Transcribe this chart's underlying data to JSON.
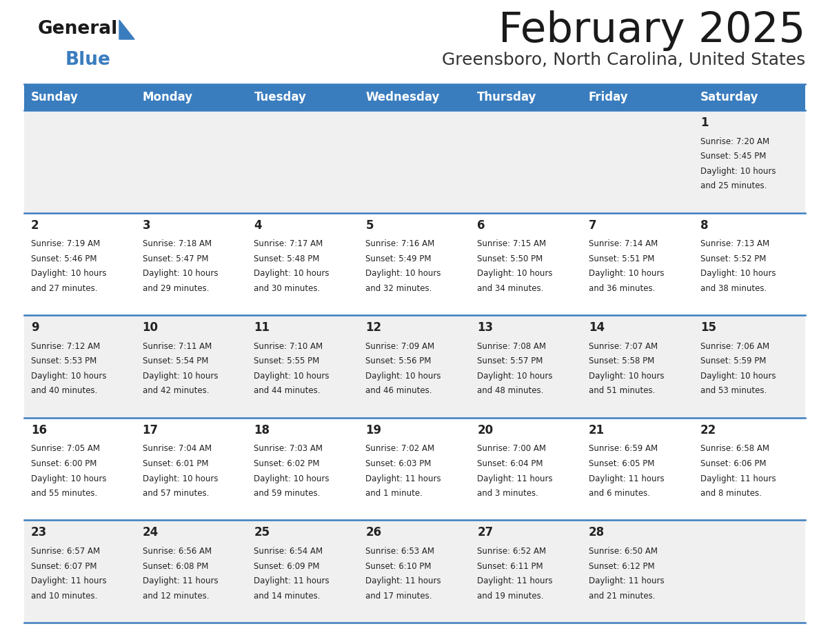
{
  "title": "February 2025",
  "subtitle": "Greensboro, North Carolina, United States",
  "header_bg": "#3a7dbf",
  "header_text": "#ffffff",
  "row_bg_odd": "#f0f0f0",
  "row_bg_even": "#ffffff",
  "cell_border": "#3a7dbf",
  "day_headers": [
    "Sunday",
    "Monday",
    "Tuesday",
    "Wednesday",
    "Thursday",
    "Friday",
    "Saturday"
  ],
  "logo_general_color": "#1a1a1a",
  "logo_blue_color": "#3a7dbf",
  "days": [
    {
      "day": 1,
      "col": 6,
      "row": 0,
      "sunrise": "7:20 AM",
      "sunset": "5:45 PM",
      "daylight": "10 hours and 25 minutes."
    },
    {
      "day": 2,
      "col": 0,
      "row": 1,
      "sunrise": "7:19 AM",
      "sunset": "5:46 PM",
      "daylight": "10 hours and 27 minutes."
    },
    {
      "day": 3,
      "col": 1,
      "row": 1,
      "sunrise": "7:18 AM",
      "sunset": "5:47 PM",
      "daylight": "10 hours and 29 minutes."
    },
    {
      "day": 4,
      "col": 2,
      "row": 1,
      "sunrise": "7:17 AM",
      "sunset": "5:48 PM",
      "daylight": "10 hours and 30 minutes."
    },
    {
      "day": 5,
      "col": 3,
      "row": 1,
      "sunrise": "7:16 AM",
      "sunset": "5:49 PM",
      "daylight": "10 hours and 32 minutes."
    },
    {
      "day": 6,
      "col": 4,
      "row": 1,
      "sunrise": "7:15 AM",
      "sunset": "5:50 PM",
      "daylight": "10 hours and 34 minutes."
    },
    {
      "day": 7,
      "col": 5,
      "row": 1,
      "sunrise": "7:14 AM",
      "sunset": "5:51 PM",
      "daylight": "10 hours and 36 minutes."
    },
    {
      "day": 8,
      "col": 6,
      "row": 1,
      "sunrise": "7:13 AM",
      "sunset": "5:52 PM",
      "daylight": "10 hours and 38 minutes."
    },
    {
      "day": 9,
      "col": 0,
      "row": 2,
      "sunrise": "7:12 AM",
      "sunset": "5:53 PM",
      "daylight": "10 hours and 40 minutes."
    },
    {
      "day": 10,
      "col": 1,
      "row": 2,
      "sunrise": "7:11 AM",
      "sunset": "5:54 PM",
      "daylight": "10 hours and 42 minutes."
    },
    {
      "day": 11,
      "col": 2,
      "row": 2,
      "sunrise": "7:10 AM",
      "sunset": "5:55 PM",
      "daylight": "10 hours and 44 minutes."
    },
    {
      "day": 12,
      "col": 3,
      "row": 2,
      "sunrise": "7:09 AM",
      "sunset": "5:56 PM",
      "daylight": "10 hours and 46 minutes."
    },
    {
      "day": 13,
      "col": 4,
      "row": 2,
      "sunrise": "7:08 AM",
      "sunset": "5:57 PM",
      "daylight": "10 hours and 48 minutes."
    },
    {
      "day": 14,
      "col": 5,
      "row": 2,
      "sunrise": "7:07 AM",
      "sunset": "5:58 PM",
      "daylight": "10 hours and 51 minutes."
    },
    {
      "day": 15,
      "col": 6,
      "row": 2,
      "sunrise": "7:06 AM",
      "sunset": "5:59 PM",
      "daylight": "10 hours and 53 minutes."
    },
    {
      "day": 16,
      "col": 0,
      "row": 3,
      "sunrise": "7:05 AM",
      "sunset": "6:00 PM",
      "daylight": "10 hours and 55 minutes."
    },
    {
      "day": 17,
      "col": 1,
      "row": 3,
      "sunrise": "7:04 AM",
      "sunset": "6:01 PM",
      "daylight": "10 hours and 57 minutes."
    },
    {
      "day": 18,
      "col": 2,
      "row": 3,
      "sunrise": "7:03 AM",
      "sunset": "6:02 PM",
      "daylight": "10 hours and 59 minutes."
    },
    {
      "day": 19,
      "col": 3,
      "row": 3,
      "sunrise": "7:02 AM",
      "sunset": "6:03 PM",
      "daylight": "11 hours and 1 minute."
    },
    {
      "day": 20,
      "col": 4,
      "row": 3,
      "sunrise": "7:00 AM",
      "sunset": "6:04 PM",
      "daylight": "11 hours and 3 minutes."
    },
    {
      "day": 21,
      "col": 5,
      "row": 3,
      "sunrise": "6:59 AM",
      "sunset": "6:05 PM",
      "daylight": "11 hours and 6 minutes."
    },
    {
      "day": 22,
      "col": 6,
      "row": 3,
      "sunrise": "6:58 AM",
      "sunset": "6:06 PM",
      "daylight": "11 hours and 8 minutes."
    },
    {
      "day": 23,
      "col": 0,
      "row": 4,
      "sunrise": "6:57 AM",
      "sunset": "6:07 PM",
      "daylight": "11 hours and 10 minutes."
    },
    {
      "day": 24,
      "col": 1,
      "row": 4,
      "sunrise": "6:56 AM",
      "sunset": "6:08 PM",
      "daylight": "11 hours and 12 minutes."
    },
    {
      "day": 25,
      "col": 2,
      "row": 4,
      "sunrise": "6:54 AM",
      "sunset": "6:09 PM",
      "daylight": "11 hours and 14 minutes."
    },
    {
      "day": 26,
      "col": 3,
      "row": 4,
      "sunrise": "6:53 AM",
      "sunset": "6:10 PM",
      "daylight": "11 hours and 17 minutes."
    },
    {
      "day": 27,
      "col": 4,
      "row": 4,
      "sunrise": "6:52 AM",
      "sunset": "6:11 PM",
      "daylight": "11 hours and 19 minutes."
    },
    {
      "day": 28,
      "col": 5,
      "row": 4,
      "sunrise": "6:50 AM",
      "sunset": "6:12 PM",
      "daylight": "11 hours and 21 minutes."
    }
  ]
}
